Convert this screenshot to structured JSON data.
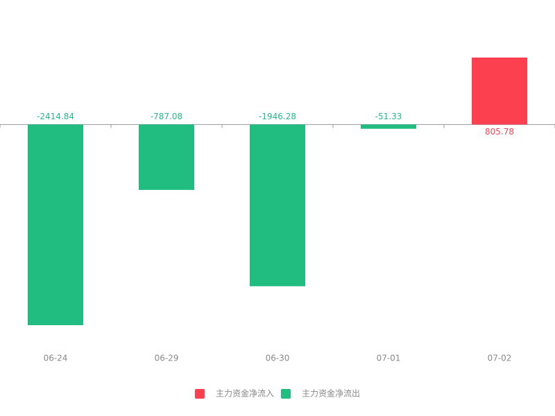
{
  "chart_data": {
    "type": "bar",
    "categories": [
      "06-24",
      "06-29",
      "06-30",
      "07-01",
      "07-02"
    ],
    "series": [
      {
        "name": "主力资金净流入",
        "color": "#fd4050",
        "values": [
          null,
          null,
          null,
          null,
          805.78
        ]
      },
      {
        "name": "主力资金净流出",
        "color": "#21bd80",
        "values": [
          -2414.84,
          -787.08,
          -1946.28,
          -51.33,
          null
        ]
      }
    ]
  }
}
